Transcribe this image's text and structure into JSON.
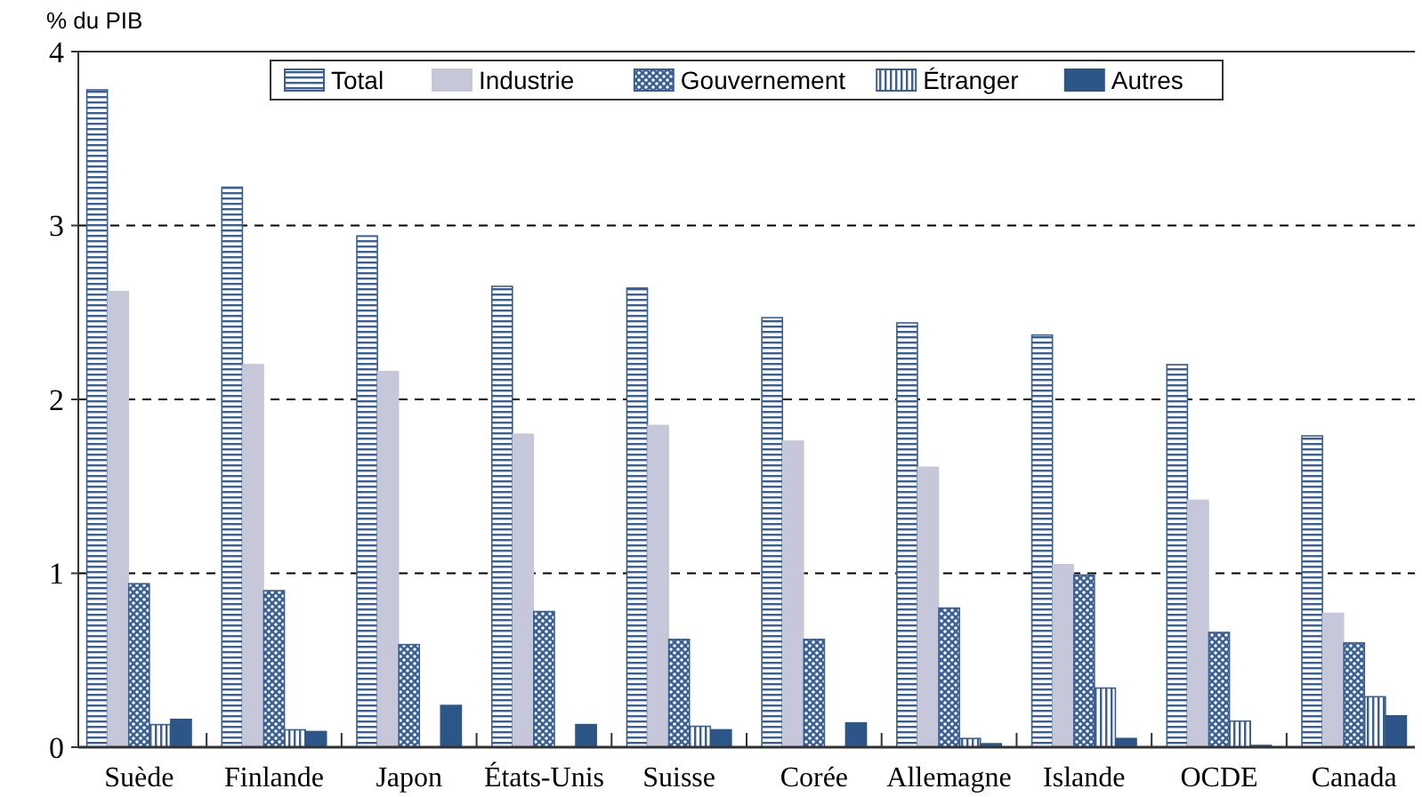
{
  "chart_data": {
    "type": "bar",
    "ylabel": "% du PIB",
    "categories": [
      "Suède",
      "Finlande",
      "Japon",
      "États-Unis",
      "Suisse",
      "Corée",
      "Allemagne",
      "Islande",
      "OCDE",
      "Canada"
    ],
    "series": [
      {
        "name": "Total",
        "color": "#3a5f95",
        "values": [
          3.78,
          3.22,
          2.94,
          2.65,
          2.64,
          2.47,
          2.44,
          2.37,
          2.2,
          1.79
        ]
      },
      {
        "name": "Industrie",
        "color": "#c6c8da",
        "values": [
          2.62,
          2.2,
          2.16,
          1.8,
          1.85,
          1.76,
          1.61,
          1.05,
          1.42,
          0.77
        ]
      },
      {
        "name": "Gouvernement",
        "color": "#3a5f95",
        "values": [
          0.94,
          0.9,
          0.59,
          0.78,
          0.62,
          0.62,
          0.8,
          0.99,
          0.66,
          0.6
        ]
      },
      {
        "name": "Étranger",
        "color": "#3a5f95",
        "values": [
          0.13,
          0.1,
          null,
          null,
          0.12,
          null,
          0.05,
          0.34,
          0.15,
          0.29
        ]
      },
      {
        "name": "Autres",
        "color": "#2c5688",
        "values": [
          0.16,
          0.09,
          0.24,
          0.13,
          0.1,
          0.14,
          0.02,
          0.05,
          0.01,
          0.18
        ]
      }
    ],
    "ylim": [
      0,
      4
    ],
    "yticks": [
      0,
      1,
      2,
      3,
      4
    ],
    "grid": "y",
    "legend": "top"
  }
}
